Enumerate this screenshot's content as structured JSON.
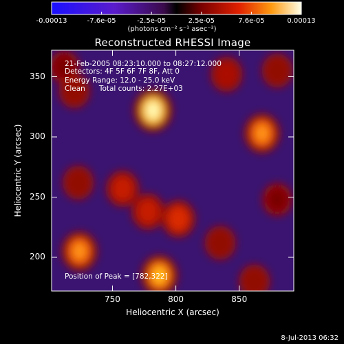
{
  "chart_data": {
    "type": "heatmap",
    "title": "Reconstructed RHESSI Image",
    "xlabel": "Heliocentric X (arcsec)",
    "ylabel": "Heliocentric Y (arcsec)",
    "xlim": [
      702,
      893
    ],
    "ylim": [
      172,
      372
    ],
    "x_ticks": [
      750,
      800,
      850
    ],
    "y_ticks": [
      200,
      250,
      300,
      350
    ],
    "colorbar": {
      "range": [
        -0.00013,
        0.00013
      ],
      "tick_labels": [
        "-0.00013",
        "-7.6e-05",
        "-2.5e-05",
        "2.5e-05",
        "7.6e-05",
        "0.00013"
      ],
      "units": "(photons cm⁻² s⁻¹ asec⁻²)"
    },
    "annotations": [
      "21-Feb-2005 08:23:10.000 to 08:27:12.000",
      "Detectors: 4F 5F 6F 7F 8F, Att 0",
      "Energy Range: 12.0 - 25.0 keV",
      "Clean      Total counts: 2.27E+03"
    ],
    "peak": {
      "x": 782,
      "y": 322,
      "label": "Position of Peak = [782,322]"
    },
    "bright_sources": [
      {
        "x": 782,
        "y": 322,
        "level": 1.0
      },
      {
        "x": 868,
        "y": 303,
        "level": 0.85
      },
      {
        "x": 724,
        "y": 205,
        "level": 0.85
      },
      {
        "x": 787,
        "y": 185,
        "level": 0.9
      },
      {
        "x": 802,
        "y": 232,
        "level": 0.75
      },
      {
        "x": 758,
        "y": 257,
        "level": 0.7
      },
      {
        "x": 778,
        "y": 238,
        "level": 0.7
      },
      {
        "x": 720,
        "y": 338,
        "level": 0.6
      },
      {
        "x": 723,
        "y": 262,
        "level": 0.6
      },
      {
        "x": 840,
        "y": 352,
        "level": 0.65
      },
      {
        "x": 880,
        "y": 355,
        "level": 0.6
      },
      {
        "x": 835,
        "y": 212,
        "level": 0.6
      },
      {
        "x": 880,
        "y": 248,
        "level": 0.55
      },
      {
        "x": 862,
        "y": 180,
        "level": 0.6
      },
      {
        "x": 712,
        "y": 358,
        "level": 0.55
      }
    ],
    "grid": false
  },
  "footer": {
    "date": "8-Jul-2013 06:32"
  }
}
